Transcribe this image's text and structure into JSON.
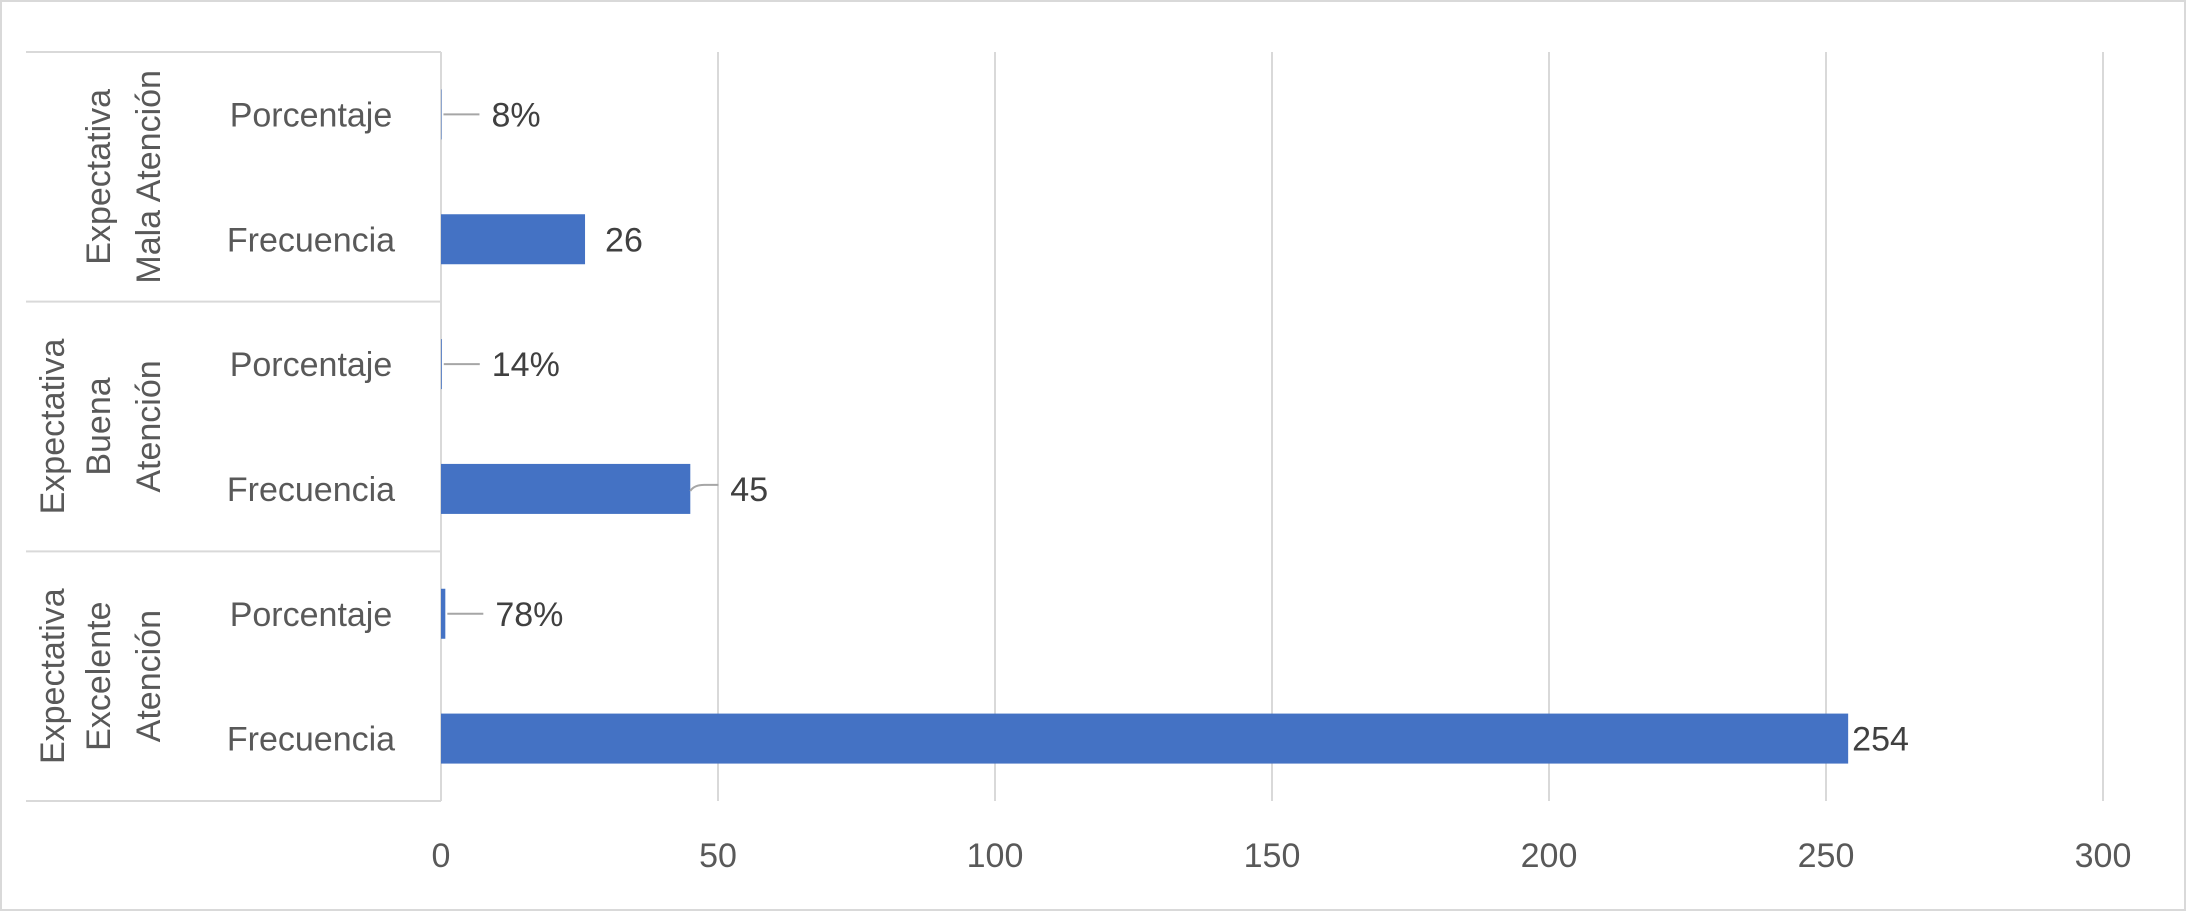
{
  "chart_data": {
    "type": "bar",
    "orientation": "horizontal",
    "title": "",
    "xlabel": "",
    "ylabel": "",
    "xlim": [
      0,
      300
    ],
    "xticks": [
      0,
      50,
      100,
      150,
      200,
      250,
      300
    ],
    "grid": true,
    "legend": "none",
    "bar_color": "#4472c4",
    "groups": [
      {
        "name_lines": [
          "Expectativa",
          "Mala Atención"
        ],
        "items": [
          {
            "category": "Porcentaje",
            "value": 0.08,
            "label": "8%"
          },
          {
            "category": "Frecuencia",
            "value": 26,
            "label": "26"
          }
        ]
      },
      {
        "name_lines": [
          "Expectativa",
          "Buena",
          "Atención"
        ],
        "items": [
          {
            "category": "Porcentaje",
            "value": 0.14,
            "label": "14%"
          },
          {
            "category": "Frecuencia",
            "value": 45,
            "label": "45"
          }
        ]
      },
      {
        "name_lines": [
          "Expectativa",
          "Excelente",
          "Atención"
        ],
        "items": [
          {
            "category": "Porcentaje",
            "value": 0.78,
            "label": "78%"
          },
          {
            "category": "Frecuencia",
            "value": 254,
            "label": "254"
          }
        ]
      }
    ]
  }
}
